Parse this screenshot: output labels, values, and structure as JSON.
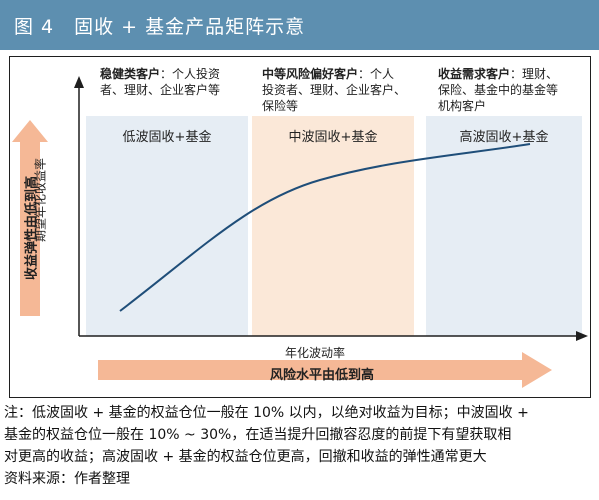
{
  "title": "图 4　固收 + 基金产品矩阵示意",
  "segments": [
    {
      "heading": "稳健类客户",
      "text_line1": "：个人投资",
      "text_line2": "者、理财、企业客户等",
      "text_line3": "",
      "zone_label": "低波固收+基金"
    },
    {
      "heading": "中等风险偏好客户",
      "text_line1": "：个人",
      "text_line2": "投资者、理财、企业客户、",
      "text_line3": "保险等",
      "zone_label": "中波固收+基金"
    },
    {
      "heading": "收益需求客户",
      "text_line1": "：理财、",
      "text_line2": "保险、基金中的基金等",
      "text_line3": "机构客户",
      "zone_label": "高波固收+基金"
    }
  ],
  "colors": {
    "title_bar": "#5d8fb0",
    "zone1": "#e6edf4",
    "zone2": "#fbe8d8",
    "zone3": "#e6edf4",
    "arrow": "#f5b896",
    "curve": "#1f4e79",
    "axis": "#1f1f1f"
  },
  "axes": {
    "y_label": "期望年化收益率",
    "x_label": "年化波动率"
  },
  "bands": {
    "vertical": "收益弹性由低到高",
    "horizontal": "风险水平由低到高"
  },
  "notes": {
    "line1": "注：低波固收 + 基金的权益仓位一般在 10% 以内，以绝对收益为目标；中波固收 +",
    "line2": "基金的权益仓位一般在 10% ~ 30%，在适当提升回撤容忍度的前提下有望获取相",
    "line3": "对更高的收益；高波固收 + 基金的权益仓位更高，回撤和收益的弹性通常更大",
    "source": "资料来源：作者整理"
  }
}
